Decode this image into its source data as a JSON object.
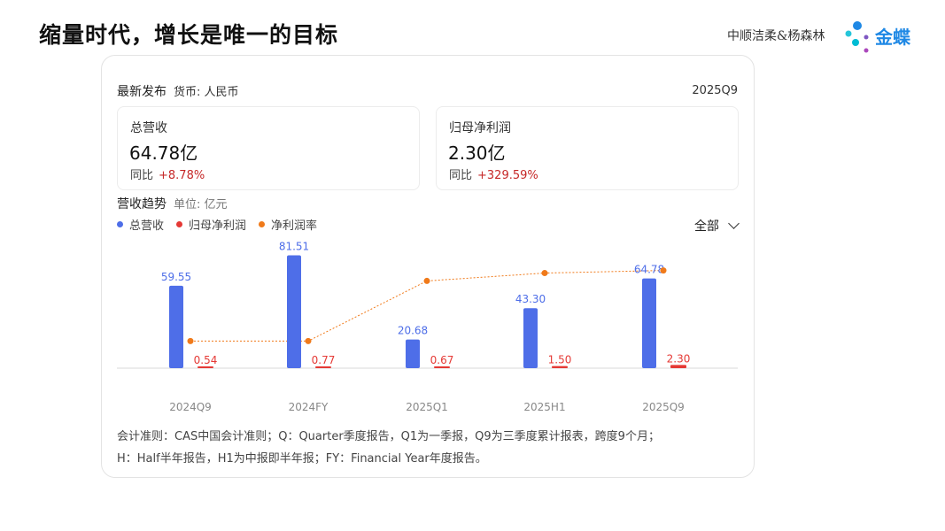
{
  "page": {
    "title": "缩量时代，增长是唯一的目标",
    "authors": "中顺洁柔&杨森林",
    "logo_text": "金蝶"
  },
  "card": {
    "header_label": "最新发布",
    "currency_label": "货币: 人民币",
    "period": "2025Q9",
    "metrics": [
      {
        "label": "总营收",
        "value": "64.78亿",
        "yoy_label": "同比",
        "yoy": "+8.78%"
      },
      {
        "label": "归母净利润",
        "value": "2.30亿",
        "yoy_label": "同比",
        "yoy": "+329.59%"
      }
    ],
    "trend_title": "营收趋势",
    "unit_label": "单位: 亿元",
    "filter_label": "全部",
    "notes_line1": "会计准则：CAS中国会计准则；Q：Quarter季度报告，Q1为一季报，Q9为三季度累计报表，跨度9个月；",
    "notes_line2": "H：Half半年报告，H1为中报即半年报；FY：Financial Year年度报告。"
  },
  "colors": {
    "revenue": "#4e6ee8",
    "profit": "#e53935",
    "margin": "#f07a1a",
    "value_label_red": "#e53935",
    "value_label_blue": "#4e6ee8",
    "axis": "#d9d9d9",
    "tick": "#888888"
  },
  "chart_data": {
    "type": "bar",
    "categories": [
      "2024Q9",
      "2024FY",
      "2025Q1",
      "2025H1",
      "2025Q9"
    ],
    "series": [
      {
        "name": "总营收",
        "type": "bar",
        "values": [
          59.55,
          81.51,
          20.68,
          43.3,
          64.78
        ],
        "labels": [
          "59.55",
          "81.51",
          "20.68",
          "43.30",
          "64.78"
        ]
      },
      {
        "name": "归母净利润",
        "type": "bar",
        "values": [
          0.54,
          0.77,
          0.67,
          1.5,
          2.3
        ],
        "labels": [
          "0.54",
          "0.77",
          "0.67",
          "1.50",
          "2.30"
        ]
      },
      {
        "name": "净利润率",
        "type": "line",
        "values": [
          0.9,
          0.9,
          3.2,
          3.5,
          3.6
        ]
      }
    ],
    "ylim": [
      0,
      85
    ],
    "legend": "top-left",
    "grid": false
  }
}
